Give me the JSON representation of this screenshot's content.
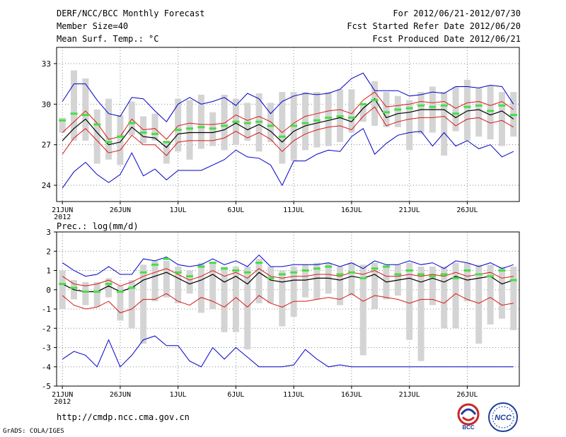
{
  "header": {
    "title": "DERF/NCC/BCC Monthly Forecast",
    "member_size": "Member Size=40",
    "variable_temp": "Mean Surf. Temp.: °C",
    "period": "For 2012/06/21-2012/07/30",
    "started": "Fcst Started Refer Date 2012/06/20",
    "produced": "Fcst Produced Date 2012/06/21"
  },
  "footer": {
    "url": "http://cmdp.ncc.cma.gov.cn",
    "grads": "GrADS: COLA/IGES",
    "logo_bcc": "BCC",
    "logo_ncc": "NCC"
  },
  "colors": {
    "box": "#d4d4d4",
    "green": "#43e043",
    "red": "#d81818",
    "blue": "#0000c8",
    "mean": "#000000",
    "grid": "#888888"
  },
  "chart_data": [
    {
      "type": "line",
      "title": "Mean Surf. Temp.: °C",
      "ylim": [
        22.8,
        34.2
      ],
      "yticks": [
        24,
        27,
        30,
        33
      ],
      "tick_labels": [
        "21JUN",
        "26JUN",
        "1JUL",
        "6JUL",
        "11JUL",
        "16JUL",
        "21JUL",
        "26JUL"
      ],
      "tick_days": [
        0,
        5,
        10,
        15,
        20,
        25,
        30,
        35
      ],
      "year_label": "2012",
      "days": 40,
      "mean": [
        27.3,
        28.2,
        28.9,
        27.9,
        27.0,
        27.2,
        28.3,
        27.6,
        27.5,
        26.8,
        27.8,
        27.9,
        27.9,
        27.9,
        28.1,
        28.6,
        28.1,
        28.5,
        28.0,
        27.2,
        28.0,
        28.4,
        28.6,
        28.8,
        29.0,
        28.7,
        29.7,
        30.4,
        29.0,
        29.3,
        29.4,
        29.6,
        29.6,
        29.6,
        29.0,
        29.5,
        29.6,
        29.2,
        29.5,
        28.9,
        28.4
      ],
      "upper": [
        27.9,
        28.7,
        29.5,
        28.6,
        27.4,
        27.6,
        28.9,
        28.1,
        28.2,
        27.4,
        28.4,
        28.6,
        28.5,
        28.5,
        28.6,
        29.2,
        28.8,
        29.1,
        28.7,
        27.9,
        28.6,
        29.1,
        29.3,
        29.5,
        29.6,
        29.3,
        30.3,
        30.9,
        29.8,
        29.9,
        30.0,
        30.2,
        30.1,
        30.2,
        29.7,
        30.1,
        30.2,
        29.9,
        30.2,
        29.6,
        28.9
      ],
      "lower": [
        26.3,
        27.5,
        28.2,
        27.3,
        26.4,
        26.6,
        27.7,
        27.0,
        27.0,
        26.2,
        27.2,
        27.3,
        27.3,
        27.3,
        27.5,
        28.0,
        27.5,
        27.9,
        27.4,
        26.5,
        27.3,
        27.8,
        28.1,
        28.3,
        28.4,
        28.1,
        29.1,
        29.8,
        28.4,
        28.7,
        28.9,
        29.0,
        29.0,
        29.1,
        28.4,
        28.9,
        29.0,
        28.6,
        28.8,
        28.3,
        27.9
      ],
      "max": [
        30.2,
        31.5,
        31.5,
        30.3,
        29.3,
        29.1,
        30.5,
        30.4,
        29.5,
        28.7,
        30.0,
        30.5,
        30.0,
        30.2,
        30.5,
        29.9,
        30.8,
        30.4,
        29.3,
        30.2,
        30.6,
        30.8,
        30.7,
        30.8,
        31.1,
        31.9,
        32.3,
        31.0,
        31.0,
        31.0,
        30.6,
        30.7,
        30.9,
        30.8,
        31.3,
        31.3,
        31.2,
        31.4,
        31.3,
        30.0
      ],
      "min": [
        23.8,
        25.0,
        25.7,
        24.8,
        24.2,
        24.8,
        26.4,
        24.7,
        25.2,
        24.4,
        25.1,
        25.1,
        25.1,
        25.5,
        25.9,
        26.6,
        26.1,
        26.0,
        25.5,
        24.0,
        25.8,
        25.8,
        26.3,
        26.6,
        26.5,
        27.6,
        28.2,
        26.3,
        27.1,
        27.7,
        27.9,
        28.0,
        26.9,
        27.9,
        26.9,
        27.3,
        26.7,
        27.0,
        26.1,
        26.5
      ],
      "obs": [
        28.8,
        29.3,
        29.2,
        28.5,
        27.2,
        27.6,
        28.6,
        27.9,
        27.8,
        27.2,
        28.1,
        28.2,
        28.3,
        28.2,
        28.4,
        28.7,
        28.6,
        28.7,
        28.4,
        27.6,
        28.4,
        28.6,
        28.8,
        29.0,
        29.1,
        29.0,
        30.0,
        30.3,
        29.4,
        29.6,
        29.7,
        29.9,
        29.8,
        29.9,
        29.3,
        29.8,
        29.9,
        29.5,
        29.9,
        29.2,
        28.7
      ],
      "box_top": [
        29.0,
        32.5,
        31.9,
        29.6,
        30.4,
        29.2,
        30.2,
        29.1,
        29.3,
        27.3,
        30.4,
        30.3,
        30.7,
        29.4,
        30.7,
        30.4,
        30.1,
        30.8,
        30.1,
        30.9,
        30.9,
        30.9,
        30.9,
        30.9,
        31.1,
        31.1,
        30.0,
        31.7,
        30.9,
        30.6,
        30.3,
        30.9,
        31.3,
        30.9,
        31.3,
        31.8,
        31.2,
        31.4,
        30.9,
        30.9
      ],
      "box_bot": [
        27.9,
        27.3,
        27.3,
        25.6,
        25.9,
        25.5,
        27.7,
        27.1,
        27.3,
        25.6,
        26.5,
        25.9,
        26.7,
        26.9,
        26.6,
        27.0,
        27.3,
        26.5,
        27.2,
        25.6,
        25.8,
        26.6,
        26.8,
        26.9,
        27.2,
        27.9,
        28.7,
        28.4,
        28.3,
        28.3,
        26.6,
        27.8,
        27.9,
        26.2,
        28.0,
        27.3,
        27.6,
        27.4,
        26.9,
        27.6
      ]
    },
    {
      "type": "line",
      "title": "Prec.: log(mm/d)",
      "ylim": [
        -5,
        3
      ],
      "yticks": [
        -5,
        -4,
        -3,
        -2,
        -1,
        0,
        1,
        2,
        3
      ],
      "tick_labels": [
        "21JUN",
        "26JUN",
        "1JUL",
        "6JUL",
        "11JUL",
        "16JUL",
        "21JUL",
        "26JUL"
      ],
      "tick_days": [
        0,
        5,
        10,
        15,
        20,
        25,
        30,
        35
      ],
      "year_label": "2012",
      "days": 40,
      "mean": [
        0.3,
        0.0,
        -0.1,
        -0.1,
        0.2,
        -0.1,
        0.1,
        0.5,
        0.7,
        0.9,
        0.6,
        0.3,
        0.5,
        0.8,
        0.4,
        0.7,
        0.3,
        0.9,
        0.5,
        0.4,
        0.5,
        0.5,
        0.6,
        0.6,
        0.5,
        0.7,
        0.6,
        0.8,
        0.4,
        0.5,
        0.6,
        0.4,
        0.6,
        0.4,
        0.7,
        0.5,
        0.6,
        0.7,
        0.3,
        0.5,
        0.6
      ],
      "upper": [
        0.7,
        0.3,
        0.2,
        0.3,
        0.5,
        0.2,
        0.4,
        0.7,
        0.9,
        1.1,
        0.8,
        0.5,
        0.7,
        1.0,
        0.7,
        0.9,
        0.6,
        1.1,
        0.7,
        0.6,
        0.7,
        0.7,
        0.8,
        0.8,
        0.7,
        0.9,
        0.8,
        1.0,
        0.7,
        0.7,
        0.8,
        0.7,
        0.8,
        0.7,
        0.9,
        0.7,
        0.8,
        0.9,
        0.6,
        0.7,
        0.8
      ],
      "lower": [
        -0.3,
        -0.8,
        -1.0,
        -0.9,
        -0.6,
        -1.2,
        -1.0,
        -0.5,
        -0.5,
        -0.2,
        -0.6,
        -0.8,
        -0.4,
        -0.6,
        -0.9,
        -0.4,
        -0.9,
        -0.3,
        -0.7,
        -0.9,
        -0.6,
        -0.6,
        -0.5,
        -0.4,
        -0.5,
        -0.2,
        -0.6,
        -0.3,
        -0.4,
        -0.5,
        -0.7,
        -0.5,
        -0.5,
        -0.7,
        -0.2,
        -0.5,
        -0.7,
        -0.4,
        -0.8,
        -0.7,
        -0.6
      ],
      "max": [
        1.4,
        1.0,
        0.7,
        0.8,
        1.2,
        0.8,
        0.8,
        1.6,
        1.5,
        1.7,
        1.3,
        1.2,
        1.3,
        1.6,
        1.3,
        1.5,
        1.2,
        1.8,
        1.2,
        1.2,
        1.3,
        1.3,
        1.3,
        1.4,
        1.2,
        1.4,
        1.1,
        1.5,
        1.3,
        1.3,
        1.5,
        1.3,
        1.4,
        1.1,
        1.5,
        1.4,
        1.2,
        1.4,
        1.1,
        1.3,
        1.3
      ],
      "min": [
        -3.6,
        -3.2,
        -3.4,
        -4.0,
        -2.6,
        -4.0,
        -3.4,
        -2.6,
        -2.4,
        -2.9,
        -2.9,
        -3.7,
        -4.0,
        -3.0,
        -3.6,
        -3.0,
        -3.5,
        -4.0,
        -4.0,
        -4.0,
        -3.9,
        -3.1,
        -3.6,
        -4.0,
        -3.9,
        -4.0,
        -4.0,
        -4.0,
        -4.0,
        -4.0,
        -4.0,
        -4.0,
        -4.0,
        -4.0,
        -4.0,
        -4.0,
        -4.0,
        -4.0,
        -4.0,
        -4.0
      ],
      "obs": [
        0.3,
        0.1,
        -0.1,
        -0.1,
        0.3,
        -0.1,
        0.1,
        0.9,
        1.3,
        1.6,
        0.9,
        0.7,
        1.2,
        1.4,
        1.1,
        1.0,
        0.9,
        1.4,
        0.6,
        0.8,
        0.9,
        1.0,
        1.1,
        1.2,
        0.8,
        0.9,
        0.6,
        1.1,
        1.2,
        0.8,
        1.0,
        0.8,
        0.7,
        0.8,
        0.6,
        1.0,
        0.8,
        0.7,
        1.0,
        0.5,
        0.7
      ],
      "box_top": [
        1.0,
        0.5,
        0.4,
        0.4,
        0.6,
        0.2,
        0.5,
        1.3,
        1.5,
        1.5,
        1.2,
        1.0,
        1.4,
        1.4,
        1.2,
        1.2,
        1.2,
        1.6,
        1.2,
        1.0,
        1.2,
        1.3,
        1.4,
        1.4,
        1.2,
        1.4,
        1.3,
        1.4,
        1.3,
        1.3,
        1.4,
        1.2,
        1.2,
        1.2,
        1.4,
        1.4,
        1.3,
        1.3,
        1.2,
        1.2
      ],
      "box_bot": [
        -1.0,
        -0.5,
        -0.8,
        -0.9,
        -0.4,
        -1.6,
        -2.0,
        -2.8,
        -0.6,
        -0.4,
        -0.7,
        -0.2,
        -1.2,
        -1.0,
        -2.2,
        -2.2,
        -3.1,
        -0.7,
        -0.7,
        -1.9,
        -1.4,
        -0.4,
        -0.5,
        -0.2,
        -0.8,
        -0.3,
        -3.4,
        -1.0,
        -0.5,
        -0.3,
        -2.6,
        -3.7,
        -0.8,
        -2.0,
        -2.0,
        -0.6,
        -2.8,
        -1.8,
        -1.5,
        -2.1
      ]
    }
  ]
}
